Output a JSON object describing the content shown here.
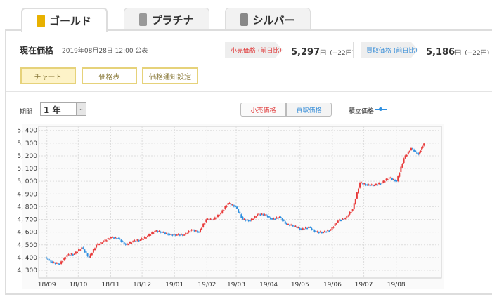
{
  "tabs": [
    {
      "label": "ゴールド",
      "icon": "gold-bar-icon",
      "color": "#e8b100",
      "active": true
    },
    {
      "label": "プラチナ",
      "icon": "platinum-bar-icon",
      "color": "#999"
    },
    {
      "label": "シルバー",
      "icon": "silver-bar-icon",
      "color": "#888"
    }
  ],
  "header": {
    "title": "現在価格",
    "published": "2019年08月28日 12:00 公表"
  },
  "retail": {
    "label": "小売価格 (前日比)",
    "price": "5,297",
    "unit": "円",
    "change": "(+22円)",
    "color": "#e03c3c"
  },
  "buyback": {
    "label": "買取価格 (前日比)",
    "price": "5,186",
    "unit": "円",
    "change": "(+22円)",
    "color": "#3a8fd8"
  },
  "views": [
    "チャート",
    "価格表",
    "価格通知設定"
  ],
  "period": {
    "label": "期間",
    "value": "1 年"
  },
  "toggle": {
    "retail": "小売価格",
    "buyback": "買取価格"
  },
  "legend": {
    "label": "積立価格"
  },
  "chart_data": {
    "type": "candlestick",
    "ylim": [
      4250,
      5420
    ],
    "yticks": [
      "5, 400",
      "5, 300",
      "5, 200",
      "5, 100",
      "5, 000",
      "4, 900",
      "4, 800",
      "4, 700",
      "4, 600",
      "4, 500",
      "4, 400",
      "4, 300"
    ],
    "ytick_values": [
      5400,
      5300,
      5200,
      5100,
      5000,
      4900,
      4800,
      4700,
      4600,
      4500,
      4400,
      4300
    ],
    "xticks": [
      "18/09",
      "18/10",
      "18/11",
      "18/12",
      "19/01",
      "19/02",
      "19/03",
      "19/04",
      "19/05",
      "19/06",
      "19/07",
      "19/08"
    ],
    "xtick_dates": [
      "2018-09-01",
      "2018-10-01",
      "2018-11-01",
      "2018-12-01",
      "2019-01-01",
      "2019-02-01",
      "2019-03-01",
      "2019-04-01",
      "2019-05-01",
      "2019-06-01",
      "2019-07-01",
      "2019-08-01"
    ],
    "grid": true,
    "up_color": "#e83a3a",
    "down_color": "#2e8fe0",
    "closes": [
      [
        "2018-08-31",
        4400
      ],
      [
        "2018-09-07",
        4360
      ],
      [
        "2018-09-14",
        4350
      ],
      [
        "2018-09-21",
        4420
      ],
      [
        "2018-09-28",
        4430
      ],
      [
        "2018-10-05",
        4480
      ],
      [
        "2018-10-12",
        4400
      ],
      [
        "2018-10-19",
        4500
      ],
      [
        "2018-10-26",
        4530
      ],
      [
        "2018-11-02",
        4560
      ],
      [
        "2018-11-09",
        4550
      ],
      [
        "2018-11-16",
        4500
      ],
      [
        "2018-11-23",
        4530
      ],
      [
        "2018-11-30",
        4540
      ],
      [
        "2018-12-07",
        4570
      ],
      [
        "2018-12-14",
        4610
      ],
      [
        "2018-12-21",
        4600
      ],
      [
        "2018-12-28",
        4580
      ],
      [
        "2019-01-04",
        4580
      ],
      [
        "2019-01-11",
        4580
      ],
      [
        "2019-01-18",
        4620
      ],
      [
        "2019-01-25",
        4600
      ],
      [
        "2019-02-01",
        4700
      ],
      [
        "2019-02-08",
        4700
      ],
      [
        "2019-02-15",
        4750
      ],
      [
        "2019-02-22",
        4830
      ],
      [
        "2019-03-01",
        4800
      ],
      [
        "2019-03-08",
        4700
      ],
      [
        "2019-03-15",
        4690
      ],
      [
        "2019-03-22",
        4740
      ],
      [
        "2019-03-29",
        4740
      ],
      [
        "2019-04-05",
        4700
      ],
      [
        "2019-04-12",
        4720
      ],
      [
        "2019-04-19",
        4660
      ],
      [
        "2019-04-26",
        4650
      ],
      [
        "2019-05-03",
        4620
      ],
      [
        "2019-05-10",
        4640
      ],
      [
        "2019-05-17",
        4600
      ],
      [
        "2019-05-24",
        4600
      ],
      [
        "2019-05-31",
        4620
      ],
      [
        "2019-06-07",
        4690
      ],
      [
        "2019-06-14",
        4710
      ],
      [
        "2019-06-21",
        4780
      ],
      [
        "2019-06-28",
        4990
      ],
      [
        "2019-07-05",
        4970
      ],
      [
        "2019-07-12",
        4970
      ],
      [
        "2019-07-19",
        4990
      ],
      [
        "2019-07-26",
        5030
      ],
      [
        "2019-08-02",
        5000
      ],
      [
        "2019-08-09",
        5180
      ],
      [
        "2019-08-16",
        5260
      ],
      [
        "2019-08-23",
        5210
      ],
      [
        "2019-08-28",
        5297
      ]
    ]
  }
}
